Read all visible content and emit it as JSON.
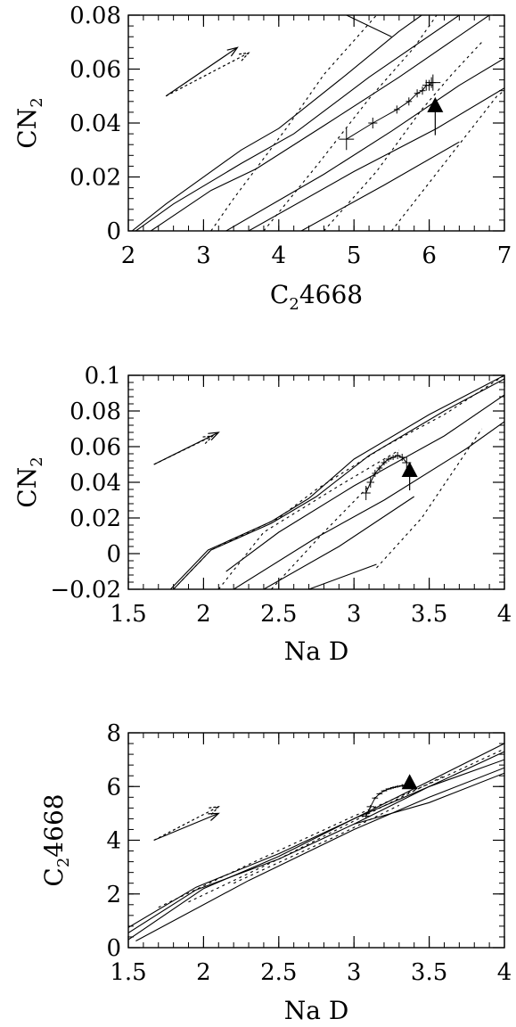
{
  "chart_data": [
    {
      "type": "line",
      "xlabel": "C",
      "xlabel_sub": "2",
      "xlabel_tail": "4668",
      "ylabel": "CN",
      "ylabel_sub": "2",
      "xlim": [
        2,
        7
      ],
      "ylim": [
        0,
        0.08
      ],
      "xticks": [
        2,
        3,
        4,
        5,
        6,
        7
      ],
      "xtick_labels": [
        "2",
        "3",
        "4",
        "5",
        "6",
        "7"
      ],
      "yticks": [
        0,
        0.02,
        0.04,
        0.06,
        0.08
      ],
      "ytick_labels": [
        "0",
        "0.02",
        "0.04",
        "0.06",
        "0.08"
      ],
      "x_minor_step": 0.2,
      "y_minor_step": 0.004,
      "grid_solid": [
        [
          [
            2.05,
            0.0
          ],
          [
            2.5,
            0.01
          ],
          [
            3.5,
            0.03
          ],
          [
            4.0,
            0.038
          ],
          [
            4.9,
            0.058
          ],
          [
            5.6,
            0.074
          ],
          [
            5.9,
            0.08
          ]
        ],
        [
          [
            2.1,
            0.0
          ],
          [
            2.6,
            0.01
          ],
          [
            3.5,
            0.025
          ],
          [
            4.2,
            0.036
          ],
          [
            5.2,
            0.057
          ],
          [
            6.4,
            0.08
          ]
        ],
        [
          [
            2.3,
            0.0
          ],
          [
            3.1,
            0.015
          ],
          [
            3.7,
            0.023
          ],
          [
            4.6,
            0.039
          ],
          [
            5.6,
            0.057
          ],
          [
            6.8,
            0.08
          ]
        ],
        [
          [
            3.3,
            0.0
          ],
          [
            4.6,
            0.021
          ],
          [
            5.5,
            0.037
          ],
          [
            6.4,
            0.054
          ],
          [
            7.0,
            0.064
          ]
        ],
        [
          [
            3.6,
            0.0
          ],
          [
            5.0,
            0.022
          ],
          [
            6.1,
            0.038
          ],
          [
            7.0,
            0.053
          ]
        ],
        [
          [
            4.3,
            0.0
          ],
          [
            5.4,
            0.017
          ],
          [
            6.4,
            0.033
          ]
        ],
        [
          [
            4.9,
            0.08
          ],
          [
            5.5,
            0.072
          ]
        ]
      ],
      "grid_dotted": [
        [
          [
            3.1,
            0.0
          ],
          [
            3.4,
            0.012
          ],
          [
            4.1,
            0.038
          ],
          [
            4.6,
            0.058
          ],
          [
            5.3,
            0.08
          ]
        ],
        [
          [
            3.8,
            0.0
          ],
          [
            4.5,
            0.024
          ],
          [
            5.2,
            0.049
          ],
          [
            5.8,
            0.068
          ],
          [
            6.1,
            0.08
          ]
        ],
        [
          [
            4.6,
            0.0
          ],
          [
            5.3,
            0.022
          ],
          [
            5.9,
            0.045
          ],
          [
            6.3,
            0.058
          ],
          [
            6.7,
            0.07
          ]
        ],
        [
          [
            5.5,
            0.0
          ],
          [
            6.2,
            0.025
          ],
          [
            6.9,
            0.05
          ],
          [
            7.0,
            0.052
          ]
        ]
      ],
      "model_track": {
        "x": [
          4.9,
          5.25,
          5.57,
          5.73,
          5.84,
          5.91,
          5.96,
          6.0,
          6.03,
          6.05
        ],
        "y": [
          0.034,
          0.04,
          0.045,
          0.048,
          0.051,
          0.052,
          0.054,
          0.054,
          0.055,
          0.055
        ],
        "xerr": [
          0.1,
          0.06,
          0.04,
          0.04,
          0.04,
          0.04,
          0.05,
          0.05,
          0.06,
          0.1
        ],
        "yerr": [
          0.004,
          0.002,
          0.0015,
          0.0015,
          0.0015,
          0.0015,
          0.002,
          0.002,
          0.002,
          0.003
        ]
      },
      "observed": {
        "x": 6.08,
        "y": 0.046,
        "yerr_low": 0.0105,
        "yerr_high": 0.0
      },
      "vector_solid": {
        "from": [
          2.5,
          0.05
        ],
        "to": [
          3.45,
          0.068
        ]
      },
      "vector_dotted": {
        "from": [
          2.5,
          0.05
        ],
        "to": [
          3.6,
          0.066
        ]
      }
    },
    {
      "type": "line",
      "xlabel": "Na D",
      "xlabel_sub": "",
      "xlabel_tail": "",
      "ylabel": "CN",
      "ylabel_sub": "2",
      "xlim": [
        1.5,
        4
      ],
      "ylim": [
        -0.02,
        0.1
      ],
      "xticks": [
        1.5,
        2,
        2.5,
        3,
        3.5,
        4
      ],
      "xtick_labels": [
        "1.5",
        "2",
        "2.5",
        "3",
        "3.5",
        "4"
      ],
      "yticks": [
        -0.02,
        0,
        0.02,
        0.04,
        0.06,
        0.08,
        0.1
      ],
      "ytick_labels": [
        "−0.02",
        "0",
        "0.02",
        "0.04",
        "0.06",
        "0.08",
        "0.1"
      ],
      "x_minor_step": 0.1,
      "y_minor_step": 0.004,
      "grid_solid": [
        [
          [
            1.78,
            -0.02
          ],
          [
            2.03,
            0.002
          ],
          [
            2.45,
            0.018
          ],
          [
            2.7,
            0.031
          ],
          [
            3.0,
            0.053
          ],
          [
            3.5,
            0.078
          ],
          [
            4.0,
            0.1
          ]
        ],
        [
          [
            1.8,
            -0.02
          ],
          [
            2.05,
            0.002
          ],
          [
            2.45,
            0.017
          ],
          [
            2.75,
            0.032
          ],
          [
            3.1,
            0.055
          ],
          [
            3.6,
            0.08
          ],
          [
            4.0,
            0.098
          ]
        ],
        [
          [
            2.15,
            -0.01
          ],
          [
            2.5,
            0.012
          ],
          [
            3.0,
            0.038
          ],
          [
            3.6,
            0.066
          ],
          [
            4.0,
            0.089
          ]
        ],
        [
          [
            2.2,
            -0.02
          ],
          [
            2.75,
            0.009
          ],
          [
            3.2,
            0.03
          ],
          [
            3.75,
            0.059
          ],
          [
            4.0,
            0.074
          ]
        ],
        [
          [
            2.4,
            -0.02
          ],
          [
            2.9,
            0.004
          ],
          [
            3.4,
            0.032
          ]
        ],
        [
          [
            2.7,
            -0.02
          ],
          [
            3.15,
            -0.006
          ]
        ]
      ],
      "grid_dotted": [
        [
          [
            1.8,
            -0.02
          ],
          [
            2.05,
            0.002
          ],
          [
            2.5,
            0.02
          ],
          [
            2.75,
            0.036
          ],
          [
            3.2,
            0.06
          ],
          [
            3.6,
            0.078
          ],
          [
            4.0,
            0.1
          ]
        ],
        [
          [
            2.1,
            -0.02
          ],
          [
            2.4,
            0.012
          ],
          [
            2.9,
            0.038
          ],
          [
            3.3,
            0.058
          ]
        ],
        [
          [
            2.45,
            -0.02
          ],
          [
            2.8,
            0.012
          ],
          [
            3.1,
            0.038
          ]
        ],
        [
          [
            3.15,
            -0.008
          ],
          [
            3.45,
            0.02
          ],
          [
            3.85,
            0.07
          ]
        ]
      ],
      "model_track": {
        "x": [
          3.08,
          3.11,
          3.14,
          3.17,
          3.2,
          3.23,
          3.26,
          3.29,
          3.32,
          3.35
        ],
        "y": [
          0.034,
          0.04,
          0.045,
          0.048,
          0.051,
          0.053,
          0.054,
          0.055,
          0.054,
          0.051
        ],
        "xerr": [
          0.03,
          0.025,
          0.02,
          0.02,
          0.02,
          0.02,
          0.02,
          0.02,
          0.02,
          0.03
        ],
        "yerr": [
          0.004,
          0.003,
          0.002,
          0.0015,
          0.0015,
          0.0015,
          0.0015,
          0.002,
          0.002,
          0.003
        ]
      },
      "observed": {
        "x": 3.37,
        "y": 0.046,
        "yerr_low": 0.0105,
        "yerr_high": 0.0
      },
      "vector_solid": {
        "from": [
          1.67,
          0.05
        ],
        "to": [
          2.1,
          0.068
        ]
      },
      "vector_dotted": {
        "from": [
          1.67,
          0.05
        ],
        "to": [
          2.06,
          0.066
        ]
      }
    },
    {
      "type": "line",
      "xlabel": "Na D",
      "xlabel_sub": "",
      "xlabel_tail": "",
      "ylabel": "C",
      "ylabel_sub": "2",
      "ylabel_tail": "4668",
      "xlim": [
        1.5,
        4
      ],
      "ylim": [
        0,
        8
      ],
      "xticks": [
        1.5,
        2,
        2.5,
        3,
        3.5,
        4
      ],
      "xtick_labels": [
        "1.5",
        "2",
        "2.5",
        "3",
        "3.5",
        "4"
      ],
      "yticks": [
        0,
        2,
        4,
        6,
        8
      ],
      "ytick_labels": [
        "0",
        "2",
        "4",
        "6",
        "8"
      ],
      "x_minor_step": 0.1,
      "y_minor_step": 0.4,
      "grid_solid": [
        [
          [
            1.5,
            0.75
          ],
          [
            1.95,
            2.25
          ],
          [
            2.5,
            3.5
          ],
          [
            3.0,
            4.8
          ],
          [
            3.5,
            6.2
          ],
          [
            4.0,
            7.6
          ]
        ],
        [
          [
            1.5,
            0.55
          ],
          [
            1.95,
            2.15
          ],
          [
            2.5,
            3.3
          ],
          [
            3.0,
            4.6
          ],
          [
            3.5,
            6.0
          ],
          [
            4.0,
            7.3
          ]
        ],
        [
          [
            1.5,
            0.3
          ],
          [
            2.0,
            2.2
          ],
          [
            2.5,
            3.4
          ],
          [
            3.0,
            4.8
          ],
          [
            3.5,
            6.0
          ],
          [
            4.0,
            7.0
          ]
        ],
        [
          [
            1.55,
            0.25
          ],
          [
            2.3,
            2.5
          ],
          [
            3.0,
            4.4
          ],
          [
            3.5,
            5.6
          ],
          [
            4.0,
            6.7
          ]
        ],
        [
          [
            3.0,
            4.6
          ],
          [
            3.5,
            5.4
          ],
          [
            4.0,
            6.5
          ]
        ]
      ],
      "grid_dotted": [
        [
          [
            1.7,
            1.5
          ],
          [
            2.3,
            3.1
          ],
          [
            3.0,
            4.9
          ],
          [
            3.5,
            6.1
          ],
          [
            4.0,
            7.4
          ]
        ],
        [
          [
            1.9,
            1.7
          ],
          [
            2.5,
            3.3
          ],
          [
            3.1,
            5.0
          ],
          [
            3.6,
            6.4
          ]
        ],
        [
          [
            2.2,
            2.4
          ],
          [
            2.9,
            4.2
          ],
          [
            3.3,
            5.3
          ]
        ]
      ],
      "model_track": {
        "x": [
          3.08,
          3.11,
          3.14,
          3.17,
          3.2,
          3.23,
          3.26,
          3.29,
          3.32,
          3.35
        ],
        "y": [
          4.9,
          5.25,
          5.57,
          5.73,
          5.84,
          5.91,
          5.96,
          6.0,
          6.03,
          6.05
        ],
        "xerr": [
          0.03,
          0.025,
          0.02,
          0.02,
          0.02,
          0.02,
          0.02,
          0.02,
          0.02,
          0.03
        ],
        "yerr": [
          0.1,
          0.06,
          0.04,
          0.04,
          0.04,
          0.04,
          0.05,
          0.05,
          0.06,
          0.1
        ]
      },
      "observed": {
        "x": 3.37,
        "y": 6.1,
        "yerr_low": 0.0,
        "yerr_high": 0.0
      },
      "vector_solid": {
        "from": [
          1.67,
          4.0
        ],
        "to": [
          2.1,
          5.0
        ]
      },
      "vector_dotted": {
        "from": [
          1.67,
          4.0
        ],
        "to": [
          2.1,
          5.25
        ]
      }
    }
  ]
}
